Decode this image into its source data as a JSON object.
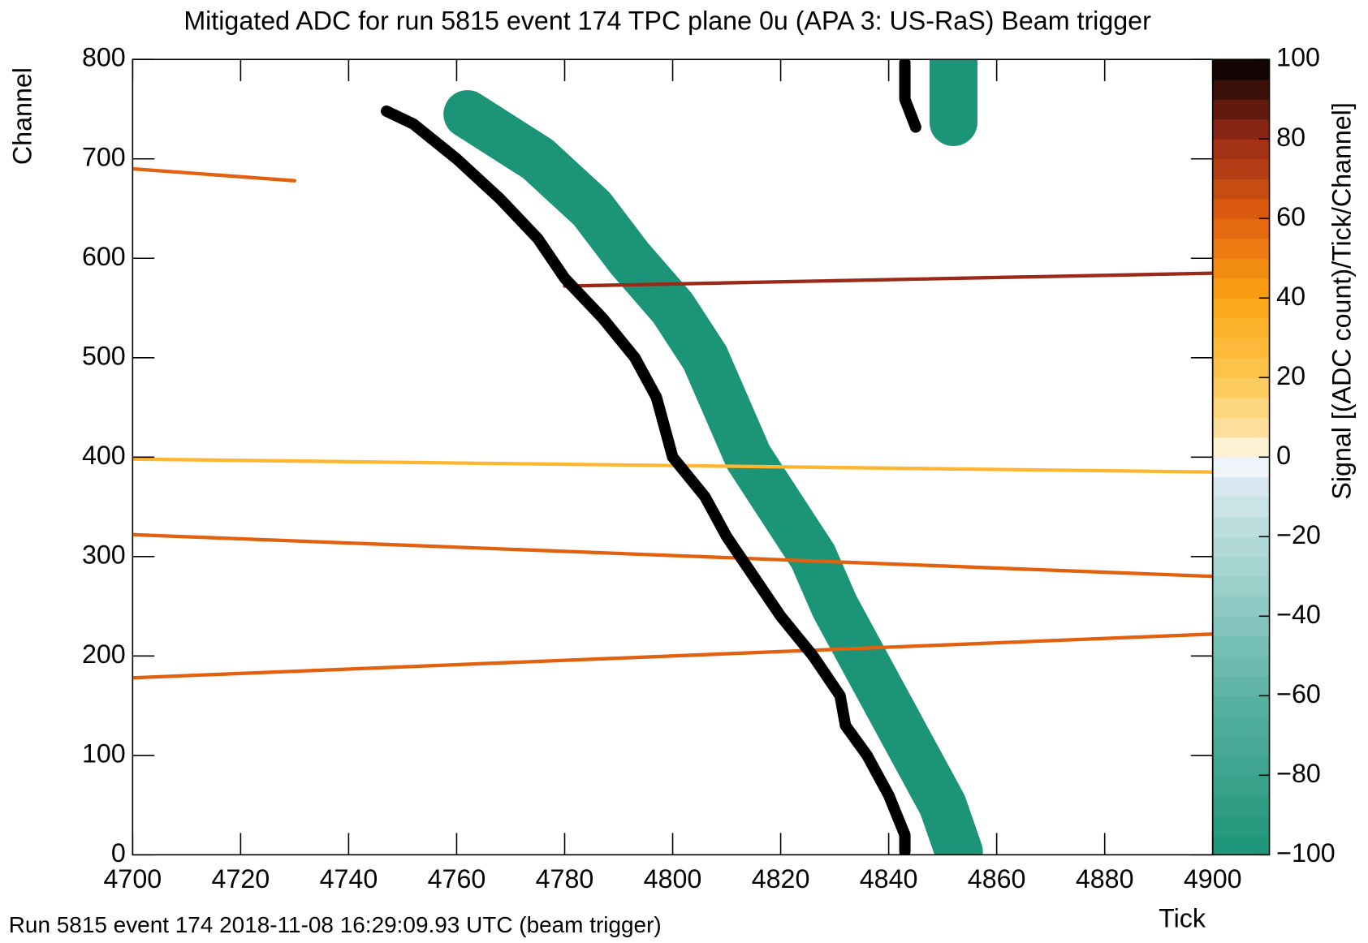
{
  "chart_data": {
    "type": "heatmap",
    "title": "Mitigated ADC for run 5815 event 174 TPC plane 0u (APA 3: US-RaS) Beam trigger",
    "x_label": "Tick",
    "y_label": "Channel",
    "colorbar_label": "Signal [(ADC count)/Tick/Channel]",
    "footer": "Run 5815 event 174 2018-11-08 16:29:09.93 UTC (beam trigger)",
    "xlim": [
      4700,
      4900
    ],
    "xticks": [
      4700,
      4720,
      4740,
      4760,
      4780,
      4800,
      4820,
      4840,
      4860,
      4880,
      4900
    ],
    "ylim": [
      0,
      800
    ],
    "yticks": [
      0,
      100,
      200,
      300,
      400,
      500,
      600,
      700,
      800
    ],
    "zlim": [
      -100,
      100
    ],
    "zticks": [
      {
        "value": -100,
        "label": "−100"
      },
      {
        "value": -80,
        "label": "−80"
      },
      {
        "value": -60,
        "label": "−60"
      },
      {
        "value": -40,
        "label": "−40"
      },
      {
        "value": -20,
        "label": "−20"
      },
      0,
      20,
      40,
      60,
      80,
      100
    ],
    "colorscale": [
      [
        -100,
        "#1c9478"
      ],
      [
        -60,
        "#5bb3a3"
      ],
      [
        -20,
        "#b6dcdb"
      ],
      [
        -5,
        "#dde9f3"
      ],
      [
        0,
        "#ffffff"
      ],
      [
        5,
        "#fde4aa"
      ],
      [
        20,
        "#fdc750"
      ],
      [
        40,
        "#fca514"
      ],
      [
        60,
        "#e2600e"
      ],
      [
        80,
        "#9a2a17"
      ],
      [
        100,
        "#000000"
      ]
    ],
    "tracks": [
      {
        "z": -100,
        "x": [
          4762,
          4775,
          4785,
          4792,
          4800,
          4806,
          4810,
          4814,
          4820,
          4826,
          4830,
          4835,
          4840,
          4845,
          4850,
          4853
        ],
        "y": [
          745,
          700,
          650,
          600,
          550,
          500,
          450,
          400,
          350,
          300,
          250,
          200,
          150,
          100,
          50,
          3
        ]
      },
      {
        "z": -100,
        "x": [
          4852,
          4852,
          4852
        ],
        "y": [
          797,
          770,
          737
        ]
      },
      {
        "z": 60,
        "x": [
          4700,
          4900
        ],
        "y": [
          178,
          222
        ]
      },
      {
        "z": 60,
        "x": [
          4700,
          4900
        ],
        "y": [
          322,
          280
        ]
      },
      {
        "z": 80,
        "x": [
          4780,
          4900
        ],
        "y": [
          572,
          585
        ]
      },
      {
        "z": 60,
        "x": [
          4700,
          4730
        ],
        "y": [
          690,
          678
        ]
      },
      {
        "z": 30,
        "x": [
          4700,
          4900
        ],
        "y": [
          398,
          385
        ]
      },
      {
        "z": 100,
        "x": [
          4747,
          4752,
          4760,
          4768,
          4775,
          4780,
          4787,
          4793,
          4797,
          4799,
          4800,
          4806,
          4810,
          4815,
          4820,
          4826,
          4831,
          4832,
          4836,
          4840,
          4843,
          4843
        ],
        "y": [
          748,
          735,
          700,
          660,
          620,
          580,
          540,
          500,
          460,
          420,
          400,
          360,
          320,
          280,
          240,
          200,
          160,
          130,
          100,
          60,
          20,
          3
        ]
      },
      {
        "z": 100,
        "x": [
          4843,
          4843,
          4845
        ],
        "y": [
          797,
          760,
          732
        ]
      }
    ]
  }
}
